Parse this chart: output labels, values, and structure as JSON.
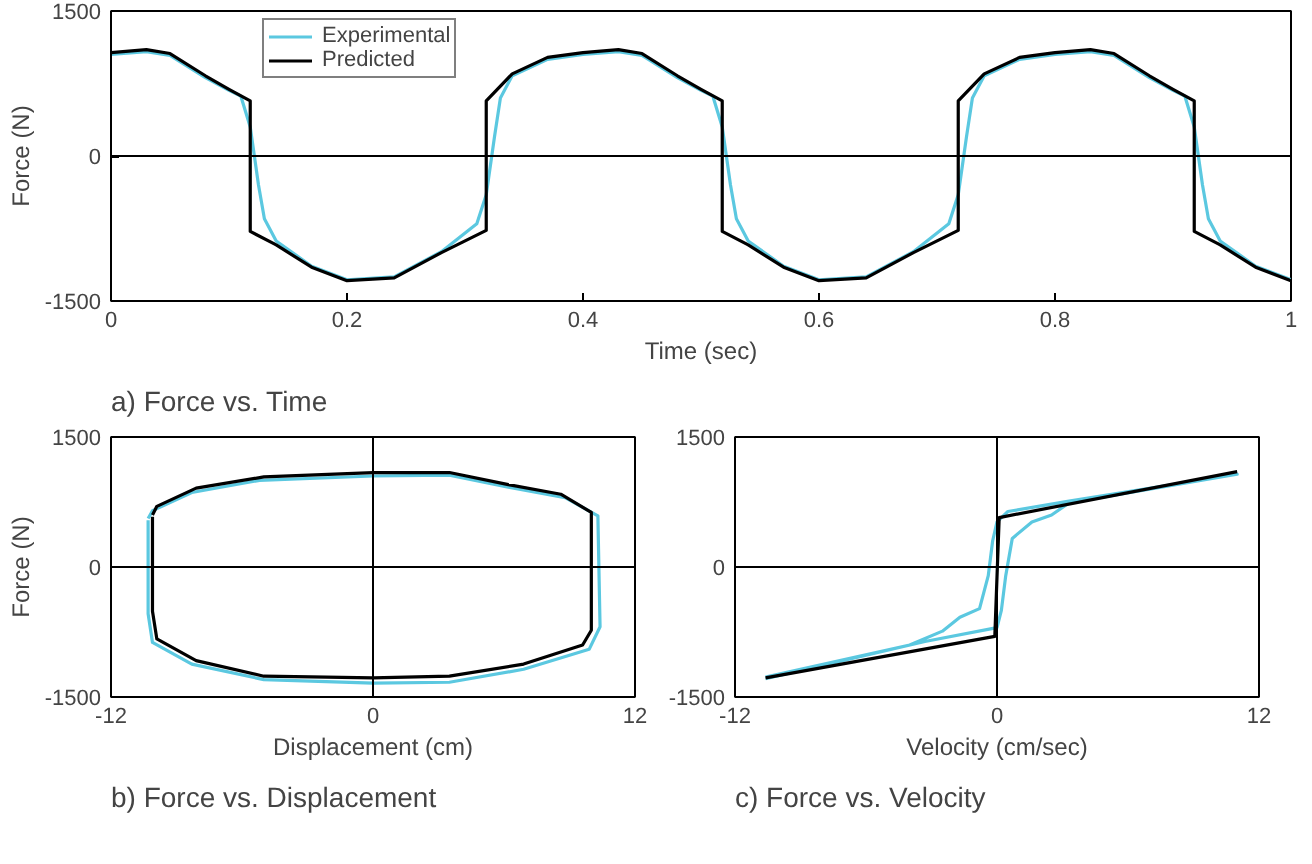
{
  "chart_data": [
    {
      "type": "line",
      "title": "a) Force vs. Time",
      "xlabel": "Time (sec)",
      "ylabel": "Force (N)",
      "xlim": [
        0,
        1
      ],
      "ylim": [
        -1500,
        1500
      ],
      "xticks": [
        0,
        {
          "value": 0.2,
          "label": "0.2"
        },
        {
          "value": 0.4,
          "label": "0.4"
        },
        {
          "value": 0.6,
          "label": "0.6"
        },
        {
          "value": 0.8,
          "label": "0.8"
        },
        1
      ],
      "yticks": [
        -1500,
        0,
        1500
      ],
      "grid": false,
      "legend": "top left",
      "line_style": "solid",
      "ref_lines": [
        {
          "axis": "y",
          "value": 0
        }
      ],
      "series": [
        {
          "name": "Experimental",
          "color": "#5bc8e0",
          "x": [
            0,
            0.03,
            0.05,
            0.08,
            0.1,
            0.11,
            0.118,
            0.125,
            0.13,
            0.14,
            0.17,
            0.2,
            0.24,
            0.28,
            0.31,
            0.318,
            0.325,
            0.33,
            0.34,
            0.37,
            0.4,
            0.43,
            0.45,
            0.48,
            0.5,
            0.51,
            0.518,
            0.525,
            0.53,
            0.54,
            0.57,
            0.6,
            0.64,
            0.68,
            0.71,
            0.718,
            0.725,
            0.73,
            0.74,
            0.77,
            0.8,
            0.83,
            0.85,
            0.88,
            0.9,
            0.91,
            0.918,
            0.925,
            0.93,
            0.94,
            0.97,
            1
          ],
          "values": [
            1050,
            1080,
            1040,
            810,
            680,
            620,
            300,
            -300,
            -650,
            -880,
            -1140,
            -1280,
            -1250,
            -990,
            -700,
            -400,
            200,
            600,
            830,
            1000,
            1050,
            1080,
            1040,
            810,
            680,
            620,
            300,
            -300,
            -650,
            -880,
            -1140,
            -1280,
            -1250,
            -990,
            -700,
            -400,
            200,
            600,
            830,
            1000,
            1050,
            1080,
            1040,
            810,
            680,
            620,
            300,
            -300,
            -650,
            -880,
            -1140,
            -1280
          ]
        },
        {
          "name": "Predicted",
          "color": "#000000",
          "x": [
            0,
            0.03,
            0.05,
            0.08,
            0.1,
            0.118,
            0.118,
            0.14,
            0.17,
            0.2,
            0.24,
            0.28,
            0.318,
            0.318,
            0.34,
            0.37,
            0.4,
            0.43,
            0.45,
            0.48,
            0.5,
            0.518,
            0.518,
            0.54,
            0.57,
            0.6,
            0.64,
            0.68,
            0.718,
            0.718,
            0.74,
            0.77,
            0.8,
            0.83,
            0.85,
            0.88,
            0.9,
            0.918,
            0.918,
            0.94,
            0.97,
            1
          ],
          "values": [
            1070,
            1100,
            1060,
            830,
            690,
            570,
            -780,
            -920,
            -1150,
            -1290,
            -1260,
            -1000,
            -770,
            570,
            850,
            1020,
            1070,
            1100,
            1060,
            830,
            690,
            570,
            -780,
            -920,
            -1150,
            -1290,
            -1260,
            -1000,
            -770,
            570,
            850,
            1020,
            1070,
            1100,
            1060,
            830,
            690,
            570,
            -780,
            -920,
            -1150,
            -1290
          ]
        }
      ]
    },
    {
      "type": "line",
      "title": "b) Force vs. Displacement",
      "xlabel": "Displacement (cm)",
      "ylabel": "Force (N)",
      "xlim": [
        -12,
        12
      ],
      "ylim": [
        -1500,
        1500
      ],
      "xticks": [
        -12,
        0,
        12
      ],
      "yticks": [
        -1500,
        0,
        1500
      ],
      "grid": false,
      "line_style": "solid",
      "ref_lines": [
        {
          "axis": "y",
          "value": 0
        },
        {
          "axis": "x",
          "value": 0
        }
      ],
      "series": [
        {
          "color": "#5bc8e0",
          "x": [
            -10.3,
            -10.1,
            -8.3,
            -5.2,
            0,
            3.5,
            6.2,
            8.8,
            10.3,
            10.4,
            9.9,
            6.9,
            3.5,
            0,
            -5,
            -8.3,
            -10.1,
            -10.3,
            -10.3
          ],
          "values": [
            560,
            650,
            860,
            1000,
            1050,
            1060,
            920,
            800,
            590,
            -690,
            -950,
            -1180,
            -1330,
            -1340,
            -1300,
            -1120,
            -870,
            -540,
            540
          ]
        },
        {
          "color": "#000000",
          "x": [
            -10.1,
            -9.9,
            -8.1,
            -5,
            0,
            3.5,
            6.2,
            8.6,
            10,
            10,
            9.6,
            6.9,
            3.5,
            0,
            -5,
            -8.1,
            -9.9,
            -10.1,
            -10.1
          ],
          "values": [
            600,
            700,
            910,
            1040,
            1090,
            1090,
            950,
            840,
            630,
            -730,
            -900,
            -1120,
            -1260,
            -1280,
            -1260,
            -1080,
            -830,
            -510,
            580
          ]
        }
      ]
    },
    {
      "type": "line",
      "title": "c) Force vs. Velocity",
      "xlabel": "Velocity (cm/sec)",
      "xlim": [
        -12,
        12
      ],
      "ylim": [
        -1500,
        1500
      ],
      "xticks": [
        -12,
        0,
        12
      ],
      "yticks": [
        -1500,
        0,
        1500
      ],
      "grid": false,
      "line_style": "solid",
      "ref_lines": [
        {
          "axis": "y",
          "value": 0
        },
        {
          "axis": "x",
          "value": 0
        }
      ],
      "series": [
        {
          "color": "#5bc8e0",
          "x": [
            -10.6,
            -4,
            -2.5,
            -1.7,
            -0.8,
            -0.4,
            -0.2,
            0,
            0.5,
            3.3,
            11,
            3.3,
            2.5,
            1.6,
            0.7,
            0.4,
            0.2,
            0,
            -3.3,
            -10.6
          ],
          "values": [
            -1270,
            -900,
            -740,
            -580,
            -480,
            -100,
            300,
            520,
            640,
            760,
            1070,
            740,
            600,
            520,
            330,
            -100,
            -500,
            -700,
            -860,
            -1290
          ]
        },
        {
          "color": "#000000",
          "x": [
            -10.6,
            -0.1,
            0.1,
            11
          ],
          "values": [
            -1280,
            -800,
            570,
            1100
          ]
        }
      ]
    }
  ]
}
